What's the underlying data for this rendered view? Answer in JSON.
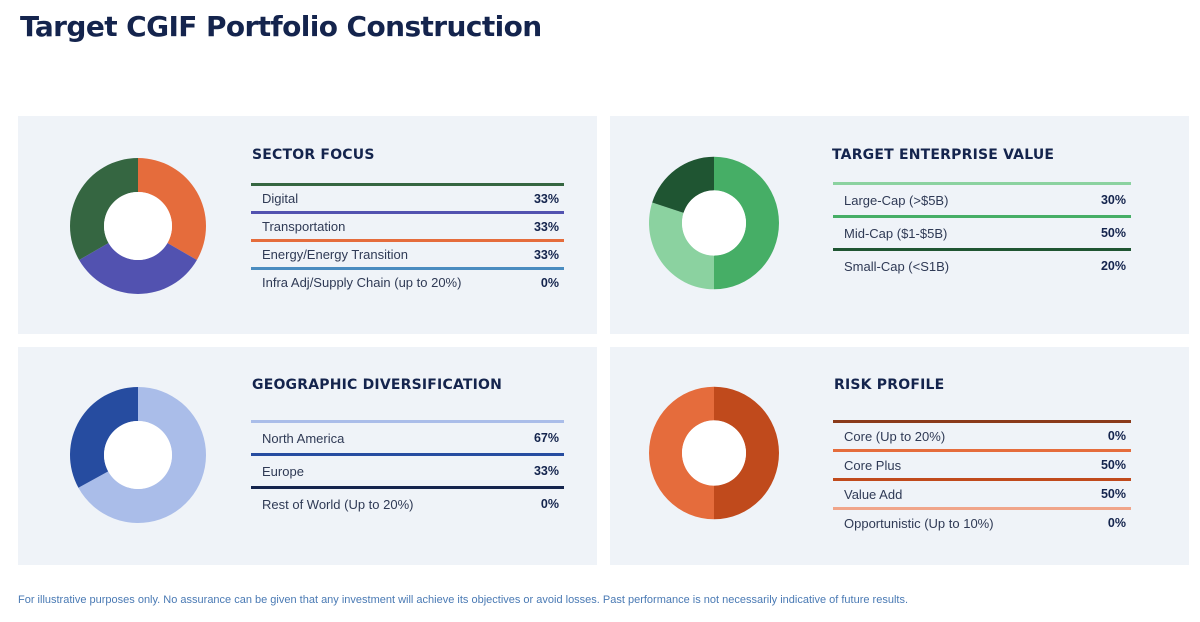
{
  "page": {
    "title": "Target CGIF Portfolio Construction",
    "disclaimer": "For illustrative purposes only. No assurance can be given that any investment will achieve its objectives or avoid losses. Past performance is not necessarily indicative of future results."
  },
  "chart_data": [
    {
      "type": "pie",
      "variant": "donut",
      "title": "SECTOR FOCUS",
      "categories": [
        "Digital",
        "Transportation",
        "Energy/Energy Transition",
        "Infra Adj/Supply Chain (up to 20%)"
      ],
      "values": [
        33,
        33,
        33,
        0
      ],
      "value_labels": [
        "33%",
        "33%",
        "33%",
        "0%"
      ],
      "colors": [
        "#356641",
        "#5252b0",
        "#e56c3c",
        "#4a8cc0"
      ],
      "draw_order": [
        2,
        1,
        0,
        3
      ]
    },
    {
      "type": "pie",
      "variant": "donut",
      "title": "TARGET ENTERPRISE VALUE",
      "categories": [
        "Large-Cap (>$5B)",
        "Mid-Cap ($1-$5B)",
        "Small-Cap (<S1B)"
      ],
      "values": [
        30,
        50,
        20
      ],
      "value_labels": [
        "30%",
        "50%",
        "20%"
      ],
      "colors": [
        "#8bd2a0",
        "#46ae66",
        "#1f5532"
      ],
      "draw_order": [
        1,
        0,
        2
      ]
    },
    {
      "type": "pie",
      "variant": "donut",
      "title": "GEOGRAPHIC DIVERSIFICATION",
      "categories": [
        "North America",
        "Europe",
        "Rest of World (Up to 20%)"
      ],
      "values": [
        67,
        33,
        0
      ],
      "value_labels": [
        "67%",
        "33%",
        "0%"
      ],
      "colors": [
        "#aabde9",
        "#264ca0",
        "#14244d"
      ],
      "draw_order": [
        0,
        1,
        2
      ]
    },
    {
      "type": "pie",
      "variant": "donut",
      "title": "RISK PROFILE",
      "categories": [
        "Core (Up to 20%)",
        "Core Plus",
        "Value Add",
        "Opportunistic (Up to 10%)"
      ],
      "values": [
        0,
        50,
        50,
        0
      ],
      "value_labels": [
        "0%",
        "50%",
        "50%",
        "0%"
      ],
      "colors": [
        "#8a3a1a",
        "#e56c3c",
        "#c04a1c",
        "#f0a58a"
      ],
      "draw_order": [
        2,
        1,
        0,
        3
      ]
    }
  ]
}
